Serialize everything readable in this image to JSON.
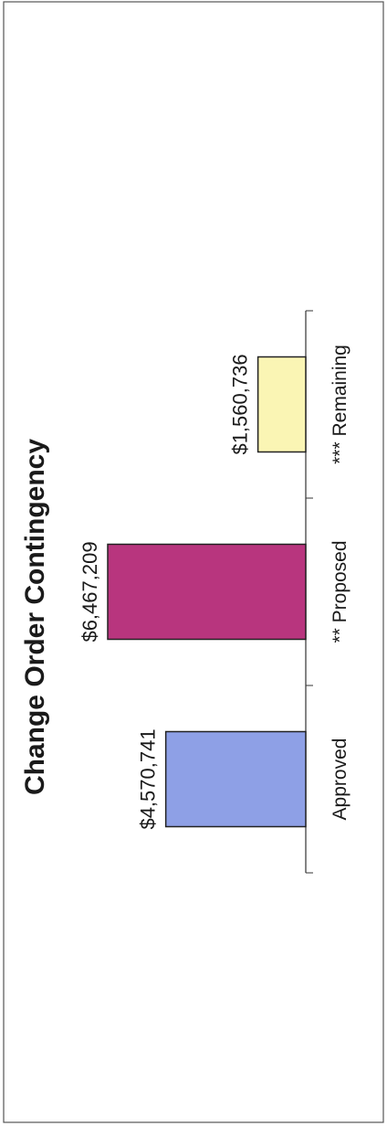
{
  "chart_data": {
    "type": "bar",
    "orientation": "rotated-90-ccw",
    "title": "Change Order Contingency",
    "categories": [
      "Approved",
      "** Proposed",
      "*** Remaining"
    ],
    "values": [
      4570741,
      6467209,
      1560736
    ],
    "value_labels": [
      "$4,570,741",
      "$6,467,209",
      "$1,560,736"
    ],
    "colors": [
      "#8ea0e6",
      "#b8357e",
      "#faf5b4"
    ],
    "ylim": [
      0,
      7000000
    ],
    "grid": false,
    "legend": "none"
  }
}
